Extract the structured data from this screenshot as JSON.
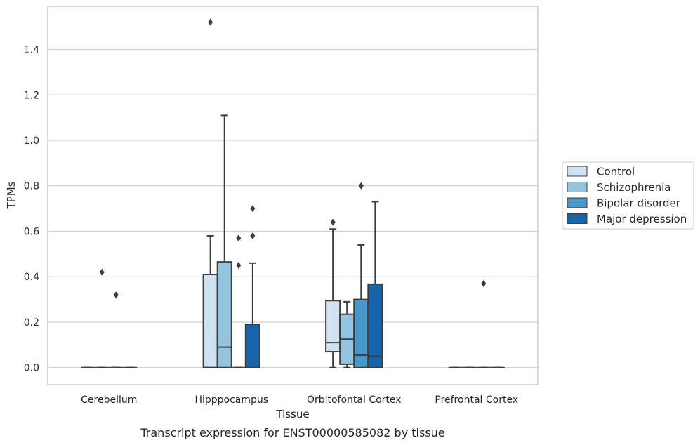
{
  "chart_data": {
    "type": "box",
    "xlabel": "Tissue",
    "ylabel": "TPMs",
    "caption": "Transcript expression for ENST00000585082 by tissue",
    "ylim": [
      -0.075,
      1.59
    ],
    "yticks": [
      "0.0",
      "0.2",
      "0.4",
      "0.6",
      "0.8",
      "1.0",
      "1.2",
      "1.4"
    ],
    "grid": true,
    "legend_position": "right",
    "categories": [
      "Cerebellum",
      "Hipppocampus",
      "Orbitofontal Cortex",
      "Prefrontal Cortex"
    ],
    "series": [
      {
        "name": "Control",
        "color": "#d0e1f2",
        "boxes": [
          {
            "whislo": 0,
            "q1": 0,
            "med": 0,
            "q3": 0,
            "whishi": 0,
            "fliers": []
          },
          {
            "whislo": 0,
            "q1": 0,
            "med": 0,
            "q3": 0.41,
            "whishi": 0.58,
            "fliers": [
              1.52
            ]
          },
          {
            "whislo": 0,
            "q1": 0.07,
            "med": 0.11,
            "q3": 0.295,
            "whishi": 0.61,
            "fliers": [
              0.64
            ]
          },
          {
            "whislo": 0,
            "q1": 0,
            "med": 0,
            "q3": 0,
            "whishi": 0,
            "fliers": []
          }
        ]
      },
      {
        "name": "Schizophrenia",
        "color": "#94c4df",
        "boxes": [
          {
            "whislo": 0,
            "q1": 0,
            "med": 0,
            "q3": 0,
            "whishi": 0,
            "fliers": [
              0.42
            ]
          },
          {
            "whislo": 0,
            "q1": 0,
            "med": 0.09,
            "q3": 0.465,
            "whishi": 1.11,
            "fliers": []
          },
          {
            "whislo": 0,
            "q1": 0.015,
            "med": 0.125,
            "q3": 0.235,
            "whishi": 0.29,
            "fliers": []
          },
          {
            "whislo": 0,
            "q1": 0,
            "med": 0,
            "q3": 0,
            "whishi": 0,
            "fliers": []
          }
        ]
      },
      {
        "name": "Bipolar disorder",
        "color": "#4a98c9",
        "boxes": [
          {
            "whislo": 0,
            "q1": 0,
            "med": 0,
            "q3": 0,
            "whishi": 0,
            "fliers": [
              0.32
            ]
          },
          {
            "whislo": 0,
            "q1": 0,
            "med": 0,
            "q3": 0,
            "whishi": 0,
            "fliers": [
              0.57,
              0.45
            ]
          },
          {
            "whislo": 0,
            "q1": 0,
            "med": 0.055,
            "q3": 0.3,
            "whishi": 0.54,
            "fliers": [
              0.8
            ]
          },
          {
            "whislo": 0,
            "q1": 0,
            "med": 0,
            "q3": 0,
            "whishi": 0,
            "fliers": [
              0.37
            ]
          }
        ]
      },
      {
        "name": "Major depression",
        "color": "#1764ab",
        "boxes": [
          {
            "whislo": 0,
            "q1": 0,
            "med": 0,
            "q3": 0,
            "whishi": 0,
            "fliers": []
          },
          {
            "whislo": 0,
            "q1": 0,
            "med": 0,
            "q3": 0.19,
            "whishi": 0.46,
            "fliers": [
              0.7,
              0.58
            ]
          },
          {
            "whislo": 0,
            "q1": 0,
            "med": 0.05,
            "q3": 0.367,
            "whishi": 0.73,
            "fliers": []
          },
          {
            "whislo": 0,
            "q1": 0,
            "med": 0,
            "q3": 0,
            "whishi": 0,
            "fliers": []
          }
        ]
      }
    ]
  }
}
